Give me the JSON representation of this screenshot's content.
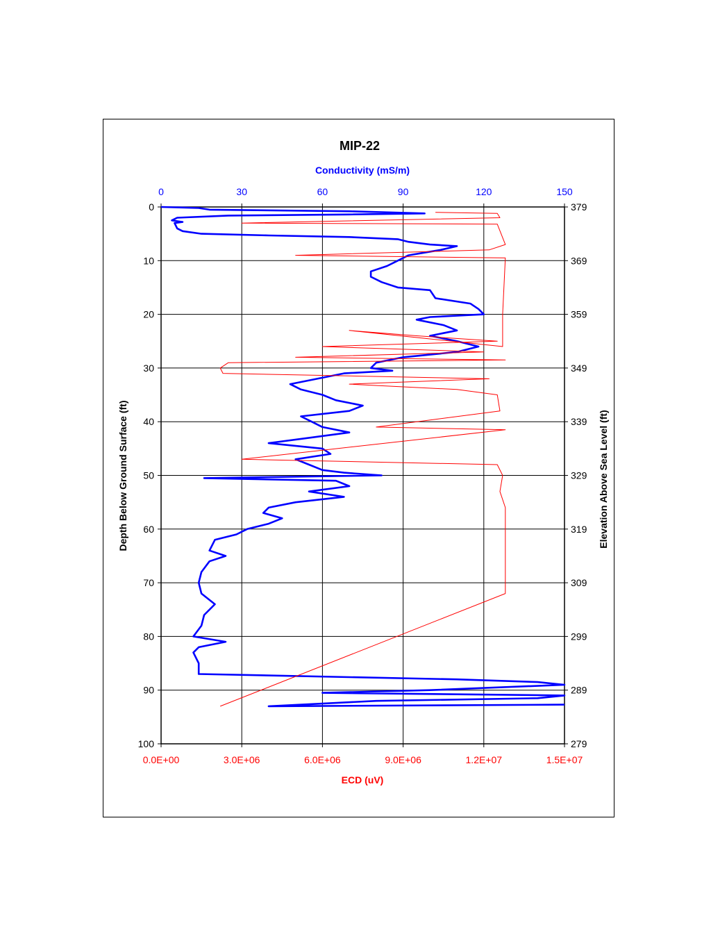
{
  "chart_data": {
    "type": "line",
    "title": "MIP-22",
    "top_axis": {
      "label": "Conductivity (mS/m)",
      "range": [
        0,
        150
      ],
      "ticks": [
        "0",
        "30",
        "60",
        "90",
        "120",
        "150"
      ],
      "color": "#0000ff"
    },
    "bottom_axis": {
      "label": "ECD (uV)",
      "range": [
        0,
        15000000
      ],
      "ticks": [
        "0.0E+00",
        "3.0E+06",
        "6.0E+06",
        "9.0E+06",
        "1.2E+07",
        "1.5E+07"
      ],
      "color": "#ff0000"
    },
    "left_axis": {
      "label": "Depth Below Ground Surface (ft)",
      "range": [
        0,
        100
      ],
      "inverted": true,
      "ticks": [
        "0",
        "10",
        "20",
        "30",
        "40",
        "50",
        "60",
        "70",
        "80",
        "90",
        "100"
      ]
    },
    "right_axis": {
      "label": "Elevation Above Sea Level (ft)",
      "range": [
        379,
        279
      ],
      "ticks": [
        "379",
        "369",
        "359",
        "349",
        "339",
        "329",
        "319",
        "309",
        "299",
        "289",
        "279"
      ]
    },
    "grid": true,
    "series": [
      {
        "color": "#0000ff",
        "axis": "Conductivity",
        "points": [
          [
            0,
            0
          ],
          [
            14,
            0.2
          ],
          [
            18,
            0.5
          ],
          [
            70,
            0.8
          ],
          [
            98,
            1.2
          ],
          [
            70,
            1.4
          ],
          [
            25,
            1.6
          ],
          [
            6,
            2
          ],
          [
            4,
            2.5
          ],
          [
            8,
            2.8
          ],
          [
            5,
            3
          ],
          [
            6,
            4
          ],
          [
            8,
            4.5
          ],
          [
            15,
            5
          ],
          [
            40,
            5.3
          ],
          [
            70,
            5.6
          ],
          [
            88,
            6
          ],
          [
            92,
            6.5
          ],
          [
            100,
            7
          ],
          [
            110,
            7.3
          ],
          [
            104,
            8
          ],
          [
            98,
            8.5
          ],
          [
            92,
            9
          ],
          [
            88,
            10
          ],
          [
            84,
            11
          ],
          [
            78,
            12
          ],
          [
            78,
            13
          ],
          [
            82,
            14
          ],
          [
            88,
            15
          ],
          [
            100,
            15.5
          ],
          [
            102,
            17
          ],
          [
            115,
            18
          ],
          [
            118,
            19
          ],
          [
            120,
            20
          ],
          [
            100,
            20.5
          ],
          [
            95,
            21
          ],
          [
            105,
            22
          ],
          [
            110,
            23
          ],
          [
            100,
            24
          ],
          [
            110,
            25
          ],
          [
            118,
            26
          ],
          [
            110,
            27
          ],
          [
            90,
            28
          ],
          [
            80,
            29
          ],
          [
            78,
            30
          ],
          [
            86,
            30.5
          ],
          [
            68,
            31
          ],
          [
            58,
            32
          ],
          [
            48,
            33
          ],
          [
            52,
            34
          ],
          [
            60,
            35
          ],
          [
            65,
            36
          ],
          [
            75,
            37
          ],
          [
            70,
            38
          ],
          [
            52,
            39
          ],
          [
            56,
            40
          ],
          [
            60,
            41
          ],
          [
            70,
            42
          ],
          [
            55,
            43
          ],
          [
            40,
            44
          ],
          [
            60,
            45
          ],
          [
            63,
            46
          ],
          [
            50,
            47
          ],
          [
            55,
            48
          ],
          [
            60,
            49
          ],
          [
            68,
            49.5
          ],
          [
            82,
            50
          ],
          [
            16,
            50.5
          ],
          [
            65,
            51
          ],
          [
            70,
            52
          ],
          [
            55,
            53
          ],
          [
            68,
            54
          ],
          [
            50,
            55
          ],
          [
            40,
            56
          ],
          [
            38,
            57
          ],
          [
            45,
            58
          ],
          [
            40,
            59
          ],
          [
            32,
            60
          ],
          [
            28,
            61
          ],
          [
            20,
            62
          ],
          [
            18,
            64
          ],
          [
            24,
            65
          ],
          [
            18,
            66
          ],
          [
            15,
            68
          ],
          [
            14,
            70
          ],
          [
            15,
            72
          ],
          [
            20,
            74
          ],
          [
            16,
            76
          ],
          [
            15,
            78
          ],
          [
            12,
            80
          ],
          [
            24,
            81
          ],
          [
            14,
            82
          ],
          [
            12,
            83
          ],
          [
            14,
            85
          ],
          [
            14,
            87
          ],
          [
            110,
            88
          ],
          [
            140,
            88.5
          ],
          [
            150,
            89
          ],
          [
            100,
            90
          ],
          [
            60,
            90.5
          ],
          [
            150,
            91
          ],
          [
            140,
            91.5
          ],
          [
            80,
            92
          ],
          [
            40,
            93
          ],
          [
            150,
            92.7
          ]
        ]
      },
      {
        "color": "#ff0000",
        "axis": "ECD",
        "points": [
          [
            10200000,
            1
          ],
          [
            12500000,
            1.2
          ],
          [
            12600000,
            2
          ],
          [
            3000000,
            3
          ],
          [
            12500000,
            3.2
          ],
          [
            12800000,
            7
          ],
          [
            12200000,
            8
          ],
          [
            5000000,
            9
          ],
          [
            12800000,
            9.5
          ],
          [
            12700000,
            20
          ],
          [
            12700000,
            26
          ],
          [
            7000000,
            23
          ],
          [
            9500000,
            24
          ],
          [
            12500000,
            25
          ],
          [
            6000000,
            26
          ],
          [
            12000000,
            27
          ],
          [
            5000000,
            28
          ],
          [
            12800000,
            28.5
          ],
          [
            2500000,
            29
          ],
          [
            2200000,
            30
          ],
          [
            2300000,
            31
          ],
          [
            12200000,
            32
          ],
          [
            7000000,
            33
          ],
          [
            11000000,
            34
          ],
          [
            12500000,
            35
          ],
          [
            12600000,
            38
          ],
          [
            8000000,
            41
          ],
          [
            12800000,
            41.5
          ],
          [
            3000000,
            47
          ],
          [
            12500000,
            48
          ],
          [
            12700000,
            50
          ],
          [
            12600000,
            53
          ],
          [
            12800000,
            56
          ],
          [
            12800000,
            72
          ],
          [
            2200000,
            93
          ]
        ]
      }
    ]
  }
}
